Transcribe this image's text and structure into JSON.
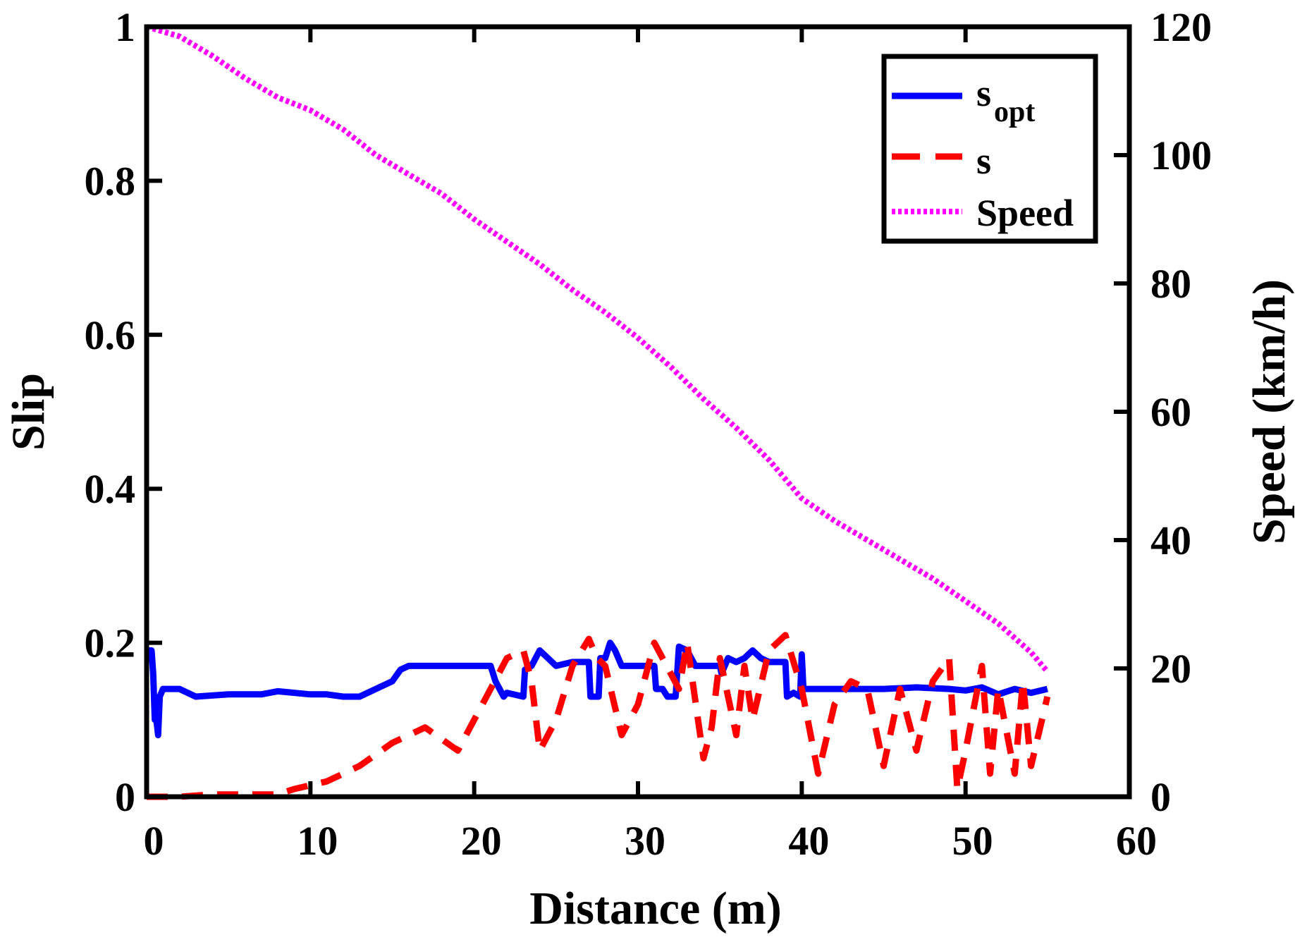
{
  "chart_data": {
    "type": "line",
    "title": "",
    "xlabel": "Distance (m)",
    "ylabel_left": "Slip",
    "ylabel_right": "Speed (km/h)",
    "xlim": [
      0,
      60
    ],
    "ylim_left": [
      0,
      1
    ],
    "ylim_right": [
      0,
      120
    ],
    "grid": false,
    "legend_position": "top-right",
    "x_ticks": [
      "0",
      "10",
      "20",
      "30",
      "40",
      "50",
      "60"
    ],
    "y_left_ticks": [
      "0",
      "0.2",
      "0.4",
      "0.6",
      "0.8",
      "1"
    ],
    "y_right_ticks": [
      "0",
      "20",
      "40",
      "60",
      "80",
      "100",
      "120"
    ],
    "series": [
      {
        "name": "s_opt",
        "legend_main": "s",
        "legend_sub": "opt",
        "axis": "left",
        "color": "#0000ff",
        "style": "solid",
        "x": [
          0,
          0.3,
          0.4,
          0.5,
          0.6,
          0.7,
          0.8,
          1,
          2,
          3,
          5,
          7,
          8,
          10,
          11,
          12,
          13,
          14,
          15,
          15.5,
          16,
          17,
          19,
          21,
          21.3,
          21.8,
          22,
          23,
          23.1,
          23.5,
          24,
          24.5,
          25,
          26,
          27,
          27.1,
          27.6,
          27.7,
          28,
          28.3,
          28.6,
          29,
          30,
          31,
          31.1,
          31.5,
          31.8,
          32.3,
          32.5,
          33,
          33.5,
          34,
          35,
          35.1,
          35.5,
          36,
          36.5,
          37,
          37.5,
          38,
          38.5,
          39,
          39.1,
          39.5,
          39.9,
          40,
          40.1,
          40.3,
          41,
          43,
          45,
          47,
          49,
          50,
          51,
          52,
          53,
          54,
          55
        ],
        "values": [
          0.19,
          0.19,
          0.16,
          0.1,
          0.1,
          0.08,
          0.13,
          0.14,
          0.14,
          0.13,
          0.133,
          0.133,
          0.137,
          0.133,
          0.133,
          0.13,
          0.13,
          0.14,
          0.15,
          0.165,
          0.17,
          0.17,
          0.17,
          0.17,
          0.15,
          0.13,
          0.135,
          0.13,
          0.165,
          0.17,
          0.19,
          0.18,
          0.17,
          0.175,
          0.175,
          0.13,
          0.13,
          0.18,
          0.18,
          0.2,
          0.19,
          0.17,
          0.17,
          0.17,
          0.14,
          0.14,
          0.13,
          0.13,
          0.195,
          0.19,
          0.17,
          0.17,
          0.17,
          0.16,
          0.18,
          0.175,
          0.18,
          0.19,
          0.18,
          0.175,
          0.175,
          0.175,
          0.13,
          0.135,
          0.13,
          0.185,
          0.14,
          0.14,
          0.14,
          0.14,
          0.14,
          0.142,
          0.14,
          0.138,
          0.142,
          0.133,
          0.14,
          0.135,
          0.14
        ]
      },
      {
        "name": "s",
        "legend_main": "s",
        "legend_sub": "",
        "axis": "left",
        "color": "#ff0000",
        "style": "dashed",
        "x": [
          0,
          2,
          4,
          6,
          8,
          9,
          11,
          13,
          15,
          17,
          19,
          20,
          21,
          22,
          23,
          23.5,
          24,
          25,
          26,
          27,
          27.5,
          28,
          29,
          30,
          31,
          32,
          32.5,
          33,
          34,
          34.5,
          35,
          36,
          36.5,
          37,
          38,
          39,
          40,
          41,
          42,
          43,
          44,
          45,
          46,
          47,
          48,
          49,
          49.5,
          50,
          51,
          51.5,
          52,
          53,
          53.5,
          54,
          55
        ],
        "values": [
          0,
          0,
          0.003,
          0.003,
          0.003,
          0.01,
          0.02,
          0.04,
          0.07,
          0.09,
          0.06,
          0.1,
          0.14,
          0.18,
          0.19,
          0.15,
          0.06,
          0.1,
          0.17,
          0.205,
          0.18,
          0.17,
          0.08,
          0.12,
          0.2,
          0.16,
          0.14,
          0.2,
          0.05,
          0.09,
          0.18,
          0.08,
          0.17,
          0.1,
          0.19,
          0.21,
          0.14,
          0.03,
          0.12,
          0.15,
          0.14,
          0.04,
          0.14,
          0.06,
          0.15,
          0.18,
          0.01,
          0.06,
          0.17,
          0.03,
          0.14,
          0.03,
          0.15,
          0.04,
          0.13
        ]
      },
      {
        "name": "Speed",
        "legend_main": "Speed",
        "legend_sub": "",
        "axis": "right",
        "color": "#ff00ff",
        "style": "dotted",
        "x": [
          0,
          2,
          4,
          6,
          8,
          10,
          12,
          14,
          16,
          18,
          20,
          22,
          24,
          26,
          28,
          30,
          32,
          34,
          36,
          38,
          40,
          42,
          44,
          46,
          48,
          50,
          52,
          54,
          55
        ],
        "values": [
          120,
          118.5,
          115.5,
          112,
          109,
          107,
          104,
          100,
          97,
          94,
          90,
          86.5,
          83,
          79,
          75.5,
          71.5,
          67,
          62,
          57.5,
          52.5,
          46.5,
          43,
          40,
          37,
          34,
          30.5,
          27,
          22.5,
          19.5
        ]
      }
    ]
  }
}
